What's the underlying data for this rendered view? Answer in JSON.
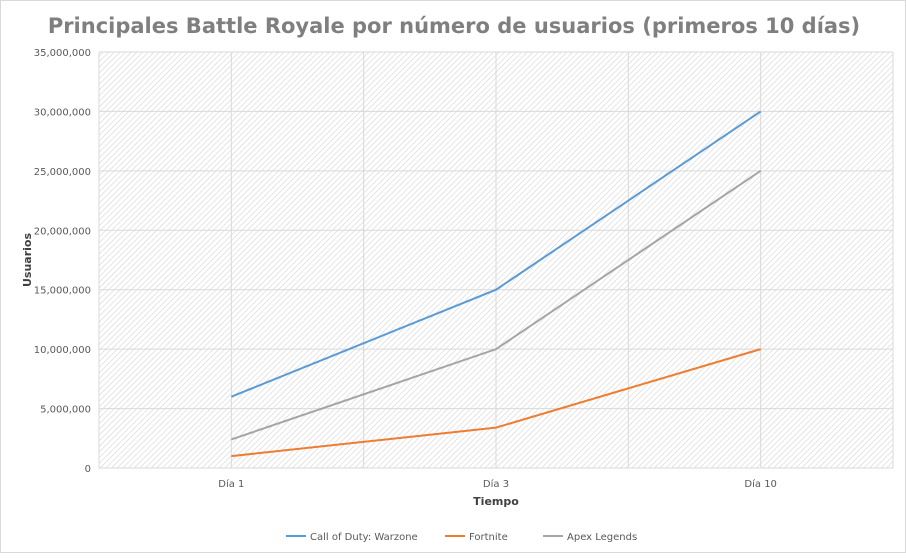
{
  "chart_data": {
    "type": "line",
    "title": "Principales Battle Royale por número de usuarios (primeros 10 días)",
    "xlabel": "Tiempo",
    "ylabel": "Usuarios",
    "categories": [
      "Día 1",
      "Día 3",
      "Día 10"
    ],
    "ylim": [
      0,
      35000000
    ],
    "yticks": [
      0,
      5000000,
      10000000,
      15000000,
      20000000,
      25000000,
      30000000,
      35000000
    ],
    "ytick_labels": [
      "0",
      "5,000,000",
      "10,000,000",
      "15,000,000",
      "20,000,000",
      "25,000,000",
      "30,000,000",
      "35,000,000"
    ],
    "grid": true,
    "legend_position": "bottom",
    "series": [
      {
        "name": "Call of Duty: Warzone",
        "color": "#5b9bd5",
        "values": [
          6000000,
          15000000,
          30000000
        ]
      },
      {
        "name": "Fortnite",
        "color": "#ed7d31",
        "values": [
          1000000,
          3400000,
          10000000
        ]
      },
      {
        "name": "Apex Legends",
        "color": "#a5a5a5",
        "values": [
          2400000,
          10000000,
          25000000
        ]
      }
    ]
  }
}
